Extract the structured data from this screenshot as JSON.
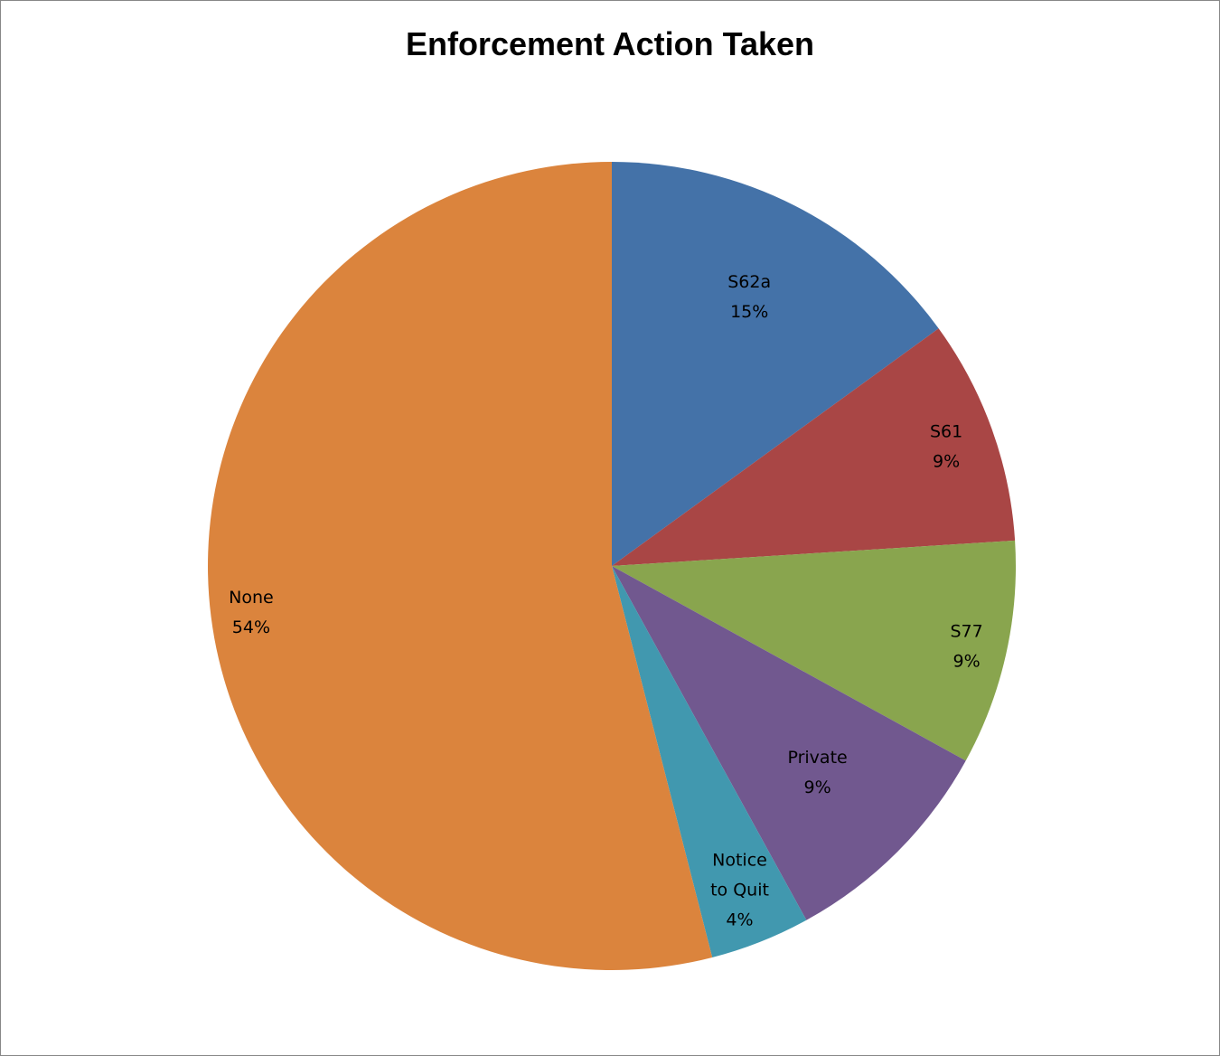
{
  "chart_data": {
    "type": "pie",
    "title": "Enforcement Action Taken",
    "slices": [
      {
        "label": "S62a",
        "value": 15,
        "pct_label": "15%",
        "color": "#4472A8"
      },
      {
        "label": "S61",
        "value": 9,
        "pct_label": "9%",
        "color": "#A94645"
      },
      {
        "label": "S77",
        "value": 9,
        "pct_label": "9%",
        "color": "#89A54E"
      },
      {
        "label": "Private",
        "value": 9,
        "pct_label": "9%",
        "color": "#71588F"
      },
      {
        "label": "Notice to Quit",
        "value": 4,
        "pct_label": "4%",
        "color": "#4198AF"
      },
      {
        "label": "None",
        "value": 54,
        "pct_label": "54%",
        "color": "#DB843D"
      }
    ]
  }
}
